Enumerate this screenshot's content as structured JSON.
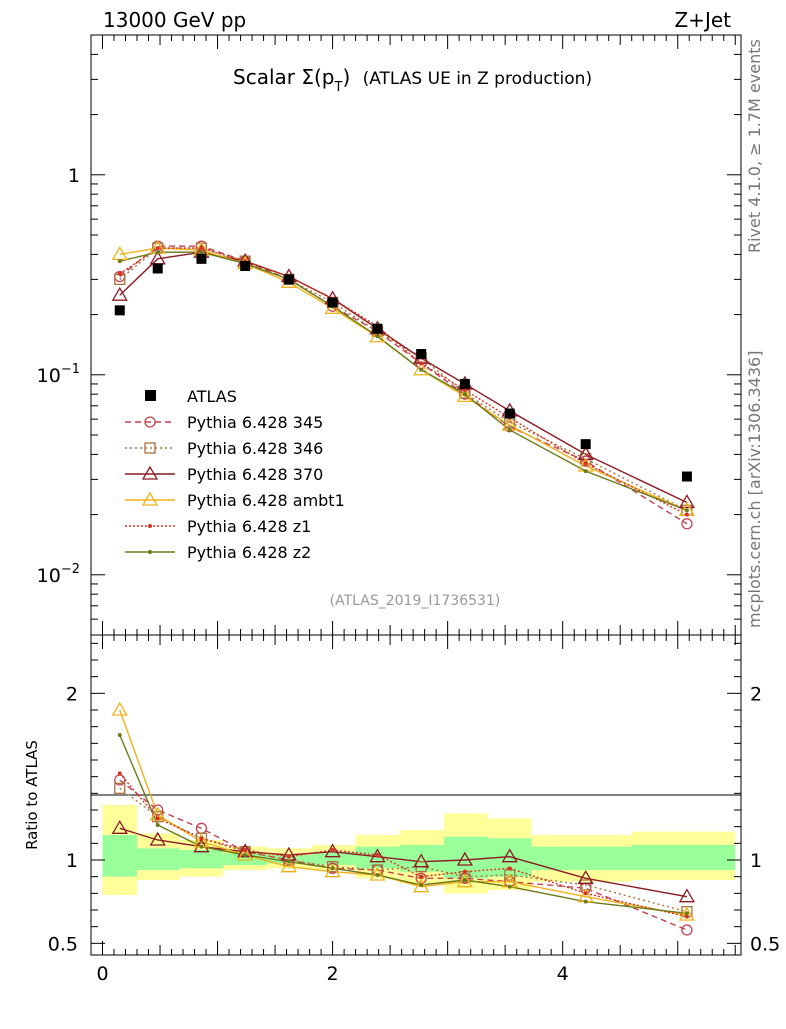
{
  "header": {
    "left": "13000 GeV pp",
    "right": "Z+Jet"
  },
  "side": {
    "rivet": "Rivet 4.1.0, ≥ 1.7M events",
    "site": "mcplots.cern.ch [arXiv:1306.3436]"
  },
  "chart_data": {
    "type": "line",
    "title_main": "Scalar Σ(p",
    "title_sub": "T",
    "title_close": ")",
    "title_rest": "(ATLAS UE in Z production)",
    "analysis_id": "(ATLAS_2019_I1736531)",
    "xlim": [
      -0.1,
      5.55
    ],
    "x_ticks": [
      0,
      2,
      4
    ],
    "main": {
      "yscale": "log",
      "ylim": [
        0.005,
        5
      ],
      "tick_labels": [
        {
          "value": 1,
          "base": "1",
          "exp": ""
        },
        {
          "value": 0.1,
          "base": "10",
          "exp": "−1"
        },
        {
          "value": 0.01,
          "base": "10",
          "exp": "−2"
        }
      ]
    },
    "ratio": {
      "ylabel": "Ratio to ATLAS",
      "ylim": [
        0.43,
        2.35
      ],
      "tick_labels": [
        {
          "value": 2,
          "label": "2"
        },
        {
          "value": 1,
          "label": "1"
        },
        {
          "value": 0.5,
          "label": "0.5"
        }
      ]
    },
    "band_bins": [
      {
        "x0": 0.0,
        "x1": 0.3,
        "yellow": [
          0.79,
          1.33
        ],
        "green": [
          0.9,
          1.15
        ]
      },
      {
        "x0": 0.3,
        "x1": 0.67,
        "yellow": [
          0.88,
          1.16
        ],
        "green": [
          0.94,
          1.07
        ]
      },
      {
        "x0": 0.67,
        "x1": 1.05,
        "yellow": [
          0.9,
          1.12
        ],
        "green": [
          0.95,
          1.06
        ]
      },
      {
        "x0": 1.05,
        "x1": 1.43,
        "yellow": [
          0.94,
          1.08
        ],
        "green": [
          0.97,
          1.04
        ]
      },
      {
        "x0": 1.43,
        "x1": 1.82,
        "yellow": [
          0.95,
          1.07
        ],
        "green": [
          0.98,
          1.03
        ]
      },
      {
        "x0": 1.82,
        "x1": 2.2,
        "yellow": [
          0.94,
          1.09
        ],
        "green": [
          0.97,
          1.05
        ]
      },
      {
        "x0": 2.2,
        "x1": 2.58,
        "yellow": [
          0.89,
          1.15
        ],
        "green": [
          0.95,
          1.08
        ]
      },
      {
        "x0": 2.58,
        "x1": 2.97,
        "yellow": [
          0.86,
          1.18
        ],
        "green": [
          0.93,
          1.09
        ]
      },
      {
        "x0": 2.97,
        "x1": 3.35,
        "yellow": [
          0.8,
          1.28
        ],
        "green": [
          0.89,
          1.14
        ]
      },
      {
        "x0": 3.35,
        "x1": 3.73,
        "yellow": [
          0.82,
          1.25
        ],
        "green": [
          0.9,
          1.13
        ]
      },
      {
        "x0": 3.73,
        "x1": 4.6,
        "yellow": [
          0.87,
          1.15
        ],
        "green": [
          0.94,
          1.08
        ]
      },
      {
        "x0": 4.6,
        "x1": 5.5,
        "yellow": [
          0.88,
          1.17
        ],
        "green": [
          0.94,
          1.09
        ]
      }
    ],
    "x": [
      0.15,
      0.48,
      0.86,
      1.24,
      1.62,
      2.0,
      2.39,
      2.77,
      3.15,
      3.54,
      4.2,
      5.08
    ],
    "data": {
      "name": "ATLAS",
      "values": [
        0.21,
        0.34,
        0.38,
        0.35,
        0.3,
        0.23,
        0.17,
        0.127,
        0.09,
        0.064,
        0.045,
        0.031
      ]
    },
    "series": [
      {
        "name": "Pythia 6.428 345",
        "color": "#c3424f",
        "dash": "6,4",
        "marker": "circle",
        "values": [
          0.31,
          0.44,
          0.44,
          0.37,
          0.3,
          0.22,
          0.165,
          0.114,
          0.08,
          0.055,
          0.037,
          0.018
        ],
        "ratio": [
          1.48,
          1.3,
          1.19,
          1.05,
          1.0,
          0.95,
          0.94,
          0.89,
          0.89,
          0.87,
          0.83,
          0.58
        ]
      },
      {
        "name": "Pythia 6.428 346",
        "color": "#a8733f",
        "dash": "2,3",
        "marker": "square",
        "values": [
          0.3,
          0.43,
          0.43,
          0.37,
          0.3,
          0.23,
          0.165,
          0.122,
          0.081,
          0.058,
          0.038,
          0.021
        ],
        "ratio": [
          1.43,
          1.26,
          1.13,
          1.05,
          1.0,
          0.96,
          0.94,
          0.96,
          0.9,
          0.91,
          0.85,
          0.69
        ]
      },
      {
        "name": "Pythia 6.428 370",
        "color": "#8b1a25",
        "dash": "",
        "marker": "triangle",
        "values": [
          0.25,
          0.38,
          0.41,
          0.37,
          0.31,
          0.24,
          0.17,
          0.121,
          0.09,
          0.066,
          0.04,
          0.023
        ],
        "ratio": [
          1.19,
          1.12,
          1.08,
          1.05,
          1.03,
          1.05,
          1.02,
          0.99,
          1.0,
          1.02,
          0.89,
          0.78
        ]
      },
      {
        "name": "Pythia 6.428 ambt1",
        "color": "#f0b21a",
        "dash": "",
        "marker": "triangle",
        "values": [
          0.4,
          0.43,
          0.42,
          0.36,
          0.29,
          0.215,
          0.155,
          0.106,
          0.078,
          0.056,
          0.035,
          0.021
        ],
        "ratio": [
          1.9,
          1.27,
          1.11,
          1.03,
          0.96,
          0.93,
          0.91,
          0.84,
          0.87,
          0.87,
          0.78,
          0.67
        ]
      },
      {
        "name": "Pythia 6.428 z1",
        "color": "#d8321f",
        "dash": "2,2",
        "marker": "dot",
        "values": [
          0.32,
          0.43,
          0.43,
          0.37,
          0.31,
          0.24,
          0.175,
          0.114,
          0.084,
          0.061,
          0.036,
          0.02
        ],
        "ratio": [
          1.52,
          1.25,
          1.13,
          1.06,
          1.02,
          1.06,
          1.03,
          0.9,
          0.93,
          0.95,
          0.8,
          0.66
        ]
      },
      {
        "name": "Pythia 6.428 z2",
        "color": "#6b7a1a",
        "dash": "",
        "marker": "dot",
        "values": [
          0.37,
          0.41,
          0.41,
          0.36,
          0.3,
          0.22,
          0.156,
          0.106,
          0.08,
          0.053,
          0.033,
          0.021
        ],
        "ratio": [
          1.75,
          1.21,
          1.08,
          1.03,
          0.99,
          0.95,
          0.91,
          0.85,
          0.88,
          0.84,
          0.75,
          0.68
        ]
      }
    ]
  }
}
